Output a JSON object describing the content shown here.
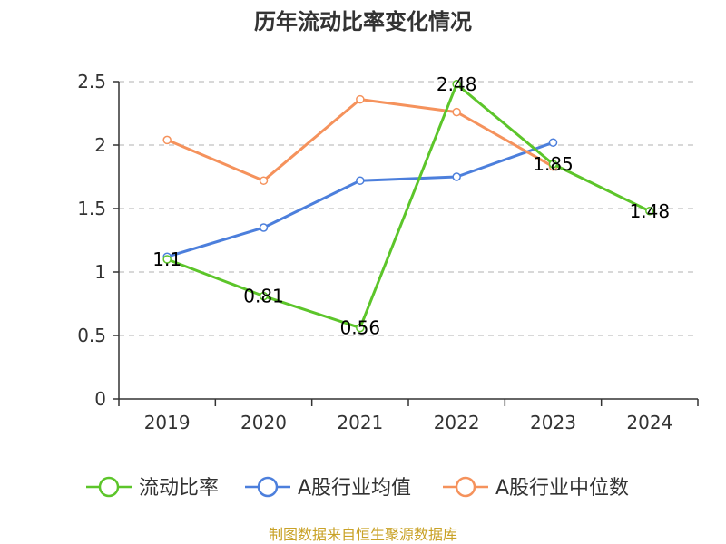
{
  "chart_data": {
    "type": "line",
    "title": "历年流动比率变化情况",
    "categories": [
      "2019",
      "2020",
      "2021",
      "2022",
      "2023",
      "2024"
    ],
    "ylim": [
      0,
      2.5
    ],
    "yticks": [
      "0",
      "0.5",
      "1",
      "1.5",
      "2",
      "2.5"
    ],
    "grid": true,
    "legend_position": "bottom",
    "series": [
      {
        "name": "流动比率",
        "color": "#5cc52a",
        "values": [
          1.1,
          0.81,
          0.56,
          2.48,
          1.85,
          1.48
        ],
        "labels": [
          "1.1",
          "0.81",
          "0.56",
          "2.48",
          "1.85",
          "1.48"
        ]
      },
      {
        "name": "A股行业均值",
        "color": "#4c7fdc",
        "values": [
          1.12,
          1.35,
          1.72,
          1.75,
          2.02,
          null
        ]
      },
      {
        "name": "A股行业中位数",
        "color": "#f5925c",
        "values": [
          2.04,
          1.72,
          2.36,
          2.26,
          1.83,
          null
        ]
      }
    ],
    "source": "制图数据来自恒生聚源数据库"
  }
}
